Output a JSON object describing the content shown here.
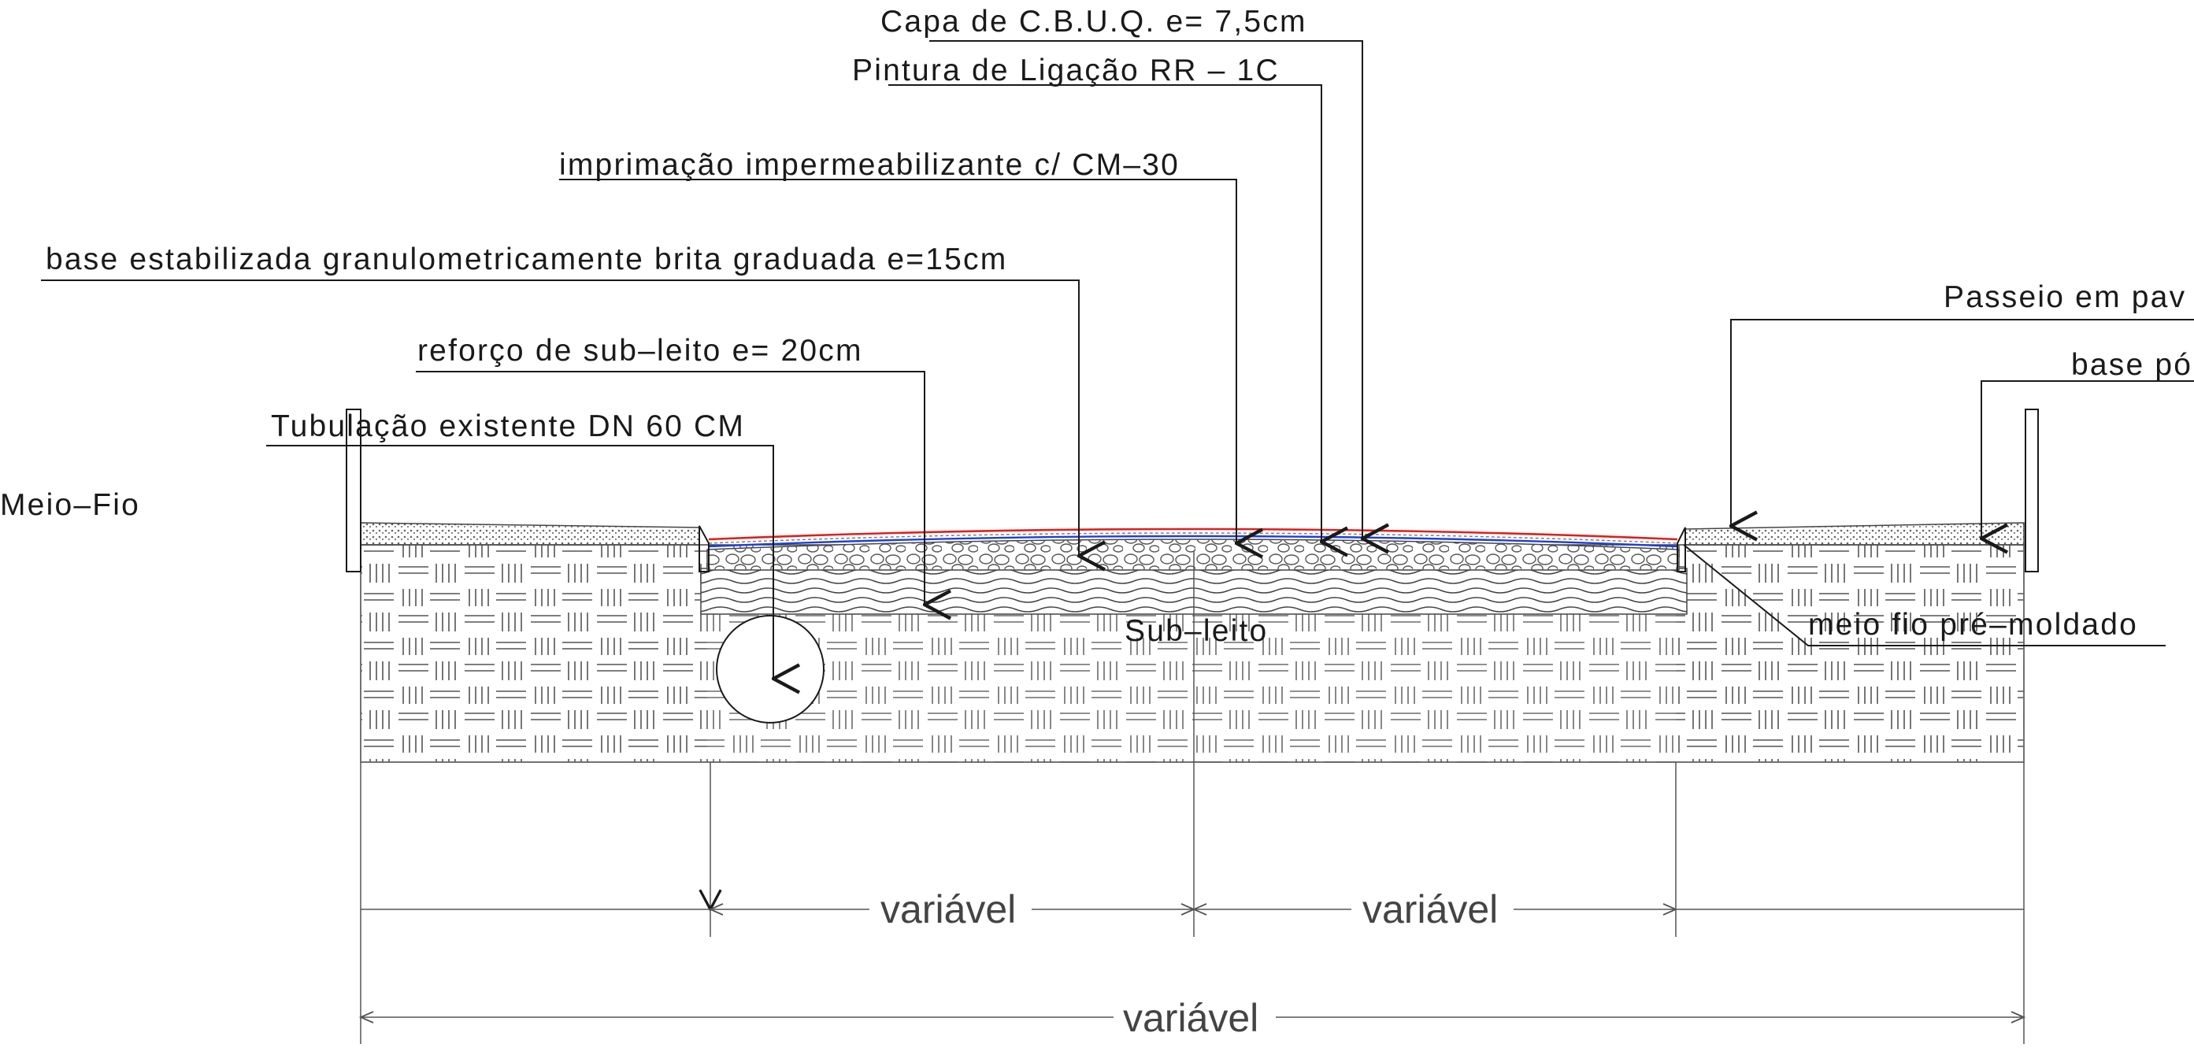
{
  "colors": {
    "line": "#1a1a1a",
    "hatch": "#6b6b6b",
    "cbuq_red": "#e0201c",
    "prime_blue": "#1c3fd8",
    "dimension": "#444444"
  },
  "labels": {
    "cbuq": "Capa  de  C.B.U.Q.   e=  7,5cm",
    "pintura": "Pintura  de  Ligação  RR  –  1C",
    "imprimacao": "imprimação  impermeabilizante  c/  CM–30",
    "base": "base  estabilizada  granulometricamente  brita  graduada   e=15cm",
    "reforco": "reforço  de  sub–leito  e=  20cm",
    "tubulacao": "Tubulação  existente  DN  60  CM",
    "meio_fio_left": "Meio–Fio",
    "passeio": "Passeio  em  pav",
    "base_po": "base  pó",
    "meio_fio_pre": "meio  fio  pré–moldado",
    "subleito": "Sub–leito"
  },
  "dimensions": {
    "left_lane": "variável",
    "right_lane": "variável",
    "total": "variável"
  }
}
